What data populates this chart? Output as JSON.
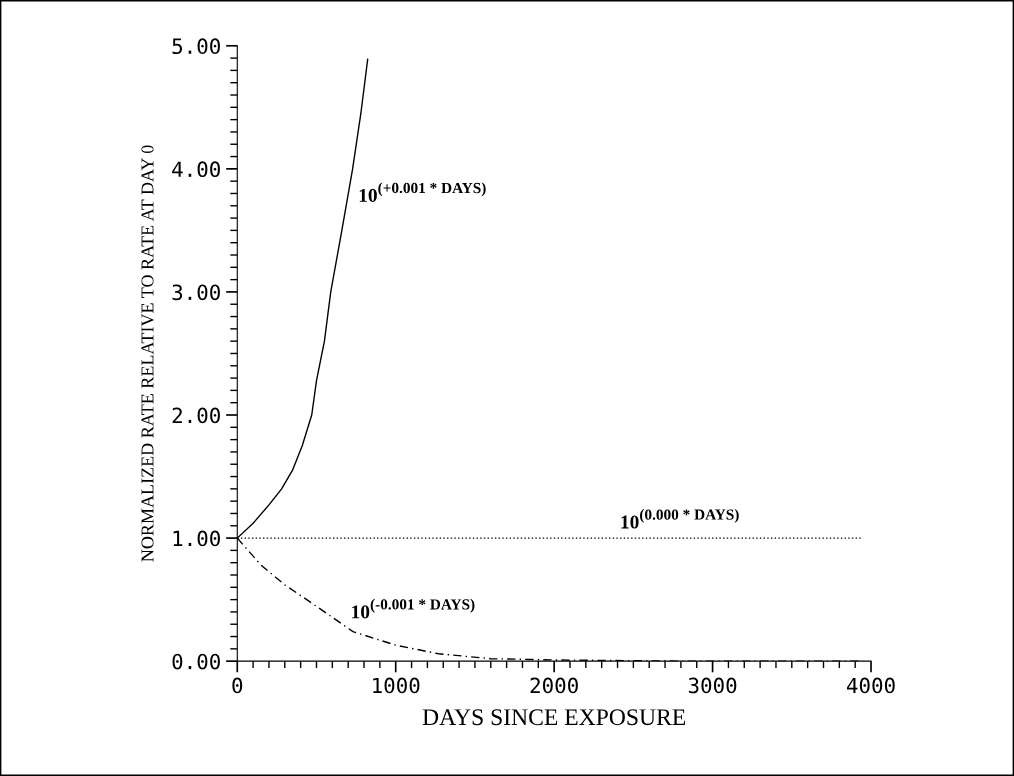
{
  "chart_data": {
    "type": "line",
    "xlabel": "DAYS SINCE EXPOSURE",
    "ylabel": "NORMALIZED RATE RELATIVE TO RATE AT DAY 0",
    "series": [
      {
        "color": "#000000",
        "line_style": "solid",
        "x": [
          0,
          100,
          200,
          280,
          348,
          410,
          470,
          500,
          550,
          590,
          660,
          728,
          780,
          823
        ],
        "values": [
          1.0,
          1.12,
          1.27,
          1.4,
          1.55,
          1.75,
          2.0,
          2.28,
          2.6,
          3.0,
          3.5,
          4.0,
          4.45,
          4.89
        ]
      },
      {
        "color": "#000000",
        "line_style": "dotted",
        "x": [
          0,
          3950
        ],
        "values": [
          1.0,
          1.0
        ]
      },
      {
        "color": "#000000",
        "line_style": "dashed",
        "x": [
          0,
          150,
          300,
          450,
          730,
          1000,
          1270,
          1600,
          2000,
          2800,
          3950
        ],
        "values": [
          1.0,
          0.78,
          0.62,
          0.49,
          0.24,
          0.13,
          0.06,
          0.02,
          0.01,
          0.0,
          0.0
        ]
      }
    ],
    "annotations": [
      {
        "text": "10$^{(+0.001 * DAYS)}$",
        "x": 728,
        "y": 4.0
      },
      {
        "text": "10$^{(0.000 * DAYS)}$",
        "x": 2380,
        "y": 1.0
      },
      {
        "text": "10$^{(-0.001 * DAYS)}$",
        "x": 680,
        "y": 0.27
      }
    ],
    "xlim": [
      0,
      4000
    ],
    "ylim": [
      0,
      5
    ],
    "xticks": [
      0,
      1000,
      2000,
      3000,
      4000
    ],
    "yticks": [
      {
        "value": 0,
        "label": "0.00"
      },
      {
        "value": 1,
        "label": "1.00"
      },
      {
        "value": 2,
        "label": "2.00"
      },
      {
        "value": 3,
        "label": "3.00"
      },
      {
        "value": 4,
        "label": "4.00"
      },
      {
        "value": 5,
        "label": "5.00"
      }
    ],
    "grid": false,
    "legend": false,
    "marker": "none"
  }
}
